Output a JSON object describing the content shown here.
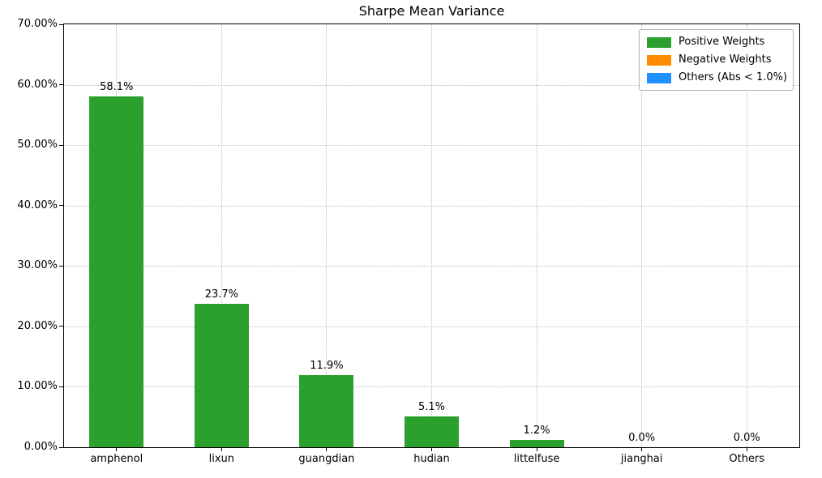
{
  "chart_data": {
    "type": "bar",
    "title": "Sharpe Mean Variance",
    "categories": [
      "amphenol",
      "lixun",
      "guangdian",
      "hudian",
      "littelfuse",
      "jianghai",
      "Others"
    ],
    "values": [
      58.1,
      23.7,
      11.9,
      5.1,
      1.2,
      0.0,
      0.0
    ],
    "bar_labels": [
      "58.1%",
      "23.7%",
      "11.9%",
      "5.1%",
      "1.2%",
      "0.0%",
      "0.0%"
    ],
    "xlabel": "",
    "ylabel": "",
    "ylim": [
      0,
      70
    ],
    "ytick_step": 10,
    "ytick_labels": [
      "0.00%",
      "10.00%",
      "20.00%",
      "30.00%",
      "40.00%",
      "50.00%",
      "60.00%",
      "70.00%"
    ],
    "grid": true,
    "grid_style": "dotted",
    "bar_color": "#2ca02c",
    "legend": {
      "position": "top-right",
      "entries": [
        {
          "label": "Positive Weights",
          "color": "#2ca02c"
        },
        {
          "label": "Negative Weights",
          "color": "#ff8c00"
        },
        {
          "label": "Others (Abs < 1.0%)",
          "color": "#1e90ff"
        }
      ]
    }
  }
}
